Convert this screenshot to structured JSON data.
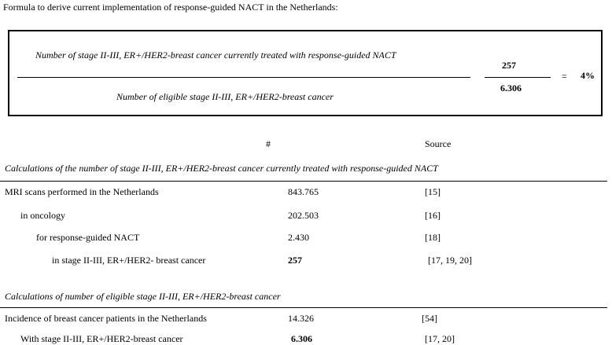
{
  "title": "Formula to derive current implementation of response-guided NACT in the Netherlands:",
  "formula": {
    "numerator_label": "Number of  stage II-III, ER+/HER2-breast cancer currently treated with response-guided NACT",
    "denominator_label": "Number of eligible stage II-III, ER+/HER2-breast cancer",
    "numerator_value": "257",
    "denominator_value": "6.306",
    "equals": "=",
    "result": "4%"
  },
  "columns": {
    "count": "#",
    "source": "Source"
  },
  "section1": {
    "heading": "Calculations of the number of stage II-III, ER+/HER2-breast cancer currently treated with response-guided NACT",
    "rows": [
      {
        "label": "MRI scans performed in the Netherlands",
        "value": "843.765",
        "source": "[15]"
      },
      {
        "label": "in oncology",
        "value": "202.503",
        "source": "[16]"
      },
      {
        "label": "for response-guided NACT",
        "value": "2.430",
        "source": "[18]"
      },
      {
        "label": "in stage II-III, ER+/HER2- breast cancer",
        "value": "257",
        "source": "[17, 19, 20]"
      }
    ]
  },
  "section2": {
    "heading": "Calculations of number of eligible stage II-III, ER+/HER2-breast cancer",
    "rows": [
      {
        "label": "Incidence of breast cancer patients in the Netherlands",
        "value": "14.326",
        "source": "[54]"
      },
      {
        "label": "With stage II-III, ER+/HER2-breast cancer",
        "value": "6.306",
        "source": "[17, 20]"
      }
    ]
  }
}
